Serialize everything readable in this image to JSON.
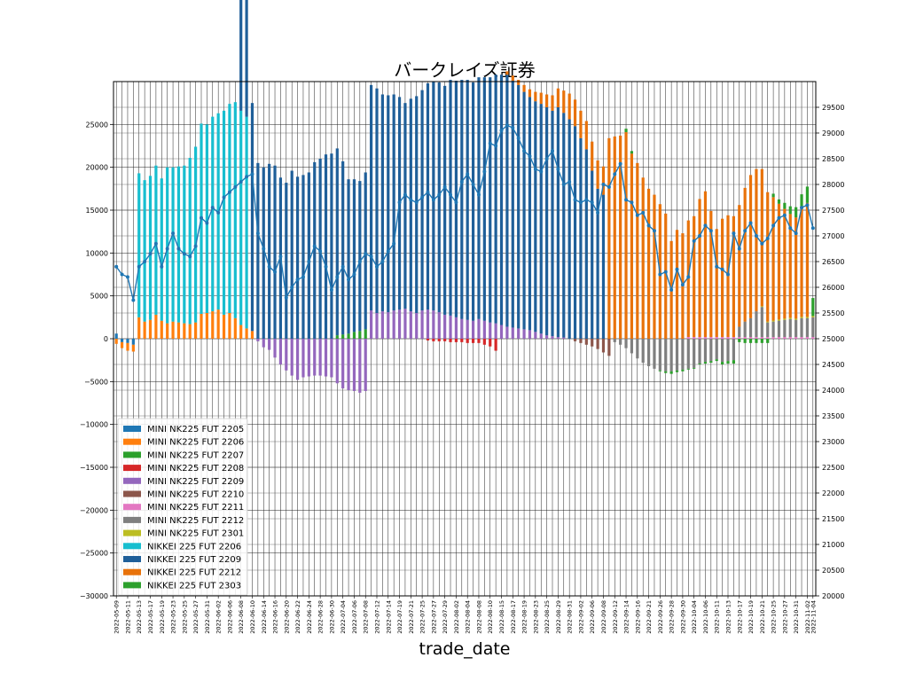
{
  "chart_data": {
    "type": "bar",
    "title": "バークレイズ証券",
    "xlabel": "trade_date",
    "ylabel": "",
    "ylim": [
      -30000,
      30000
    ],
    "y2lim": [
      20000,
      30000
    ],
    "grid": true,
    "legend_position": "bottom-left",
    "y_ticks": [
      -30000,
      -25000,
      -20000,
      -15000,
      -10000,
      -5000,
      0,
      5000,
      10000,
      15000,
      20000,
      25000
    ],
    "y2_ticks": [
      20000,
      20500,
      21000,
      21500,
      22000,
      22500,
      23000,
      23500,
      24000,
      24500,
      25000,
      25500,
      26000,
      26500,
      27000,
      27500,
      28000,
      28500,
      29000,
      29500
    ],
    "categories": [
      "2022-05-09",
      "2022-05-10",
      "2022-05-11",
      "2022-05-12",
      "2022-05-13",
      "2022-05-16",
      "2022-05-17",
      "2022-05-18",
      "2022-05-19",
      "2022-05-20",
      "2022-05-23",
      "2022-05-24",
      "2022-05-25",
      "2022-05-26",
      "2022-05-27",
      "2022-05-30",
      "2022-05-31",
      "2022-06-01",
      "2022-06-02",
      "2022-06-03",
      "2022-06-06",
      "2022-06-07",
      "2022-06-08",
      "2022-06-09",
      "2022-06-10",
      "2022-06-13",
      "2022-06-14",
      "2022-06-15",
      "2022-06-16",
      "2022-06-17",
      "2022-06-20",
      "2022-06-21",
      "2022-06-22",
      "2022-06-23",
      "2022-06-24",
      "2022-06-27",
      "2022-06-28",
      "2022-06-29",
      "2022-06-30",
      "2022-07-01",
      "2022-07-04",
      "2022-07-05",
      "2022-07-06",
      "2022-07-07",
      "2022-07-08",
      "2022-07-11",
      "2022-07-12",
      "2022-07-13",
      "2022-07-14",
      "2022-07-15",
      "2022-07-19",
      "2022-07-20",
      "2022-07-21",
      "2022-07-22",
      "2022-07-25",
      "2022-07-26",
      "2022-07-27",
      "2022-07-28",
      "2022-07-29",
      "2022-08-01",
      "2022-08-02",
      "2022-08-03",
      "2022-08-04",
      "2022-08-05",
      "2022-08-08",
      "2022-08-09",
      "2022-08-10",
      "2022-08-12",
      "2022-08-15",
      "2022-08-16",
      "2022-08-17",
      "2022-08-18",
      "2022-08-19",
      "2022-08-22",
      "2022-08-23",
      "2022-08-24",
      "2022-08-25",
      "2022-08-26",
      "2022-08-29",
      "2022-08-30",
      "2022-08-31",
      "2022-09-01",
      "2022-09-02",
      "2022-09-05",
      "2022-09-06",
      "2022-09-07",
      "2022-09-08",
      "2022-09-09",
      "2022-09-12",
      "2022-09-13",
      "2022-09-14",
      "2022-09-15",
      "2022-09-16",
      "2022-09-20",
      "2022-09-21",
      "2022-09-22",
      "2022-09-26",
      "2022-09-27",
      "2022-09-28",
      "2022-09-29",
      "2022-09-30",
      "2022-10-03",
      "2022-10-04",
      "2022-10-05",
      "2022-10-06",
      "2022-10-07",
      "2022-10-11",
      "2022-10-12",
      "2022-10-13",
      "2022-10-14",
      "2022-10-17",
      "2022-10-18",
      "2022-10-19",
      "2022-10-20",
      "2022-10-21",
      "2022-10-24",
      "2022-10-25",
      "2022-10-26",
      "2022-10-27",
      "2022-10-28",
      "2022-10-31",
      "2022-11-01",
      "2022-11-02",
      "2022-11-04"
    ],
    "x_tick_labels": [
      "2022-05-09",
      "2022-05-11",
      "2022-05-13",
      "2022-05-17",
      "2022-05-19",
      "2022-05-23",
      "2022-05-25",
      "2022-05-27",
      "2022-05-31",
      "2022-06-02",
      "2022-06-06",
      "2022-06-08",
      "2022-06-10",
      "2022-06-14",
      "2022-06-16",
      "2022-06-20",
      "2022-06-22",
      "2022-06-24",
      "2022-06-28",
      "2022-06-30",
      "2022-07-04",
      "2022-07-06",
      "2022-07-08",
      "2022-07-12",
      "2022-07-14",
      "2022-07-19",
      "2022-07-21",
      "2022-07-25",
      "2022-07-27",
      "2022-07-29",
      "2022-08-02",
      "2022-08-04",
      "2022-08-08",
      "2022-08-10",
      "2022-08-15",
      "2022-08-17",
      "2022-08-19",
      "2022-08-23",
      "2022-08-25",
      "2022-08-29",
      "2022-08-31",
      "2022-09-02",
      "2022-09-06",
      "2022-09-08",
      "2022-09-12",
      "2022-09-14",
      "2022-09-16",
      "2022-09-21",
      "2022-09-26",
      "2022-09-28",
      "2022-09-30",
      "2022-10-04",
      "2022-10-06",
      "2022-10-11",
      "2022-10-13",
      "2022-10-17",
      "2022-10-19",
      "2022-10-21",
      "2022-10-25",
      "2022-10-27",
      "2022-10-31",
      "2022-11-02",
      "2022-11-04"
    ],
    "series": [
      {
        "name": "MINI NK225 FUT 2205",
        "color": "#1f77b4",
        "segments": [
          {
            "from": "2022-05-09",
            "to": "2022-05-12",
            "values": [
              600,
              -400,
              -500,
              -700
            ]
          }
        ]
      },
      {
        "name": "MINI NK225 FUT 2206",
        "color": "#ff7f0e",
        "segments": [
          {
            "from": "2022-05-09",
            "to": "2022-06-10",
            "values": [
              -600,
              -700,
              -900,
              -800,
              2500,
              2000,
              2200,
              2800,
              2100,
              1800,
              2000,
              1900,
              1800,
              1700,
              1900,
              2900,
              3000,
              3200,
              3400,
              2800,
              3000,
              2400,
              1600,
              1200,
              900
            ]
          }
        ]
      },
      {
        "name": "MINI NK225 FUT 2207",
        "color": "#2ca02c",
        "segments": [
          {
            "from": "2022-07-01",
            "to": "2022-07-08",
            "values": [
              400,
              500,
              600,
              800,
              900,
              1100
            ]
          }
        ]
      },
      {
        "name": "MINI NK225 FUT 2208",
        "color": "#d62728",
        "segments": [
          {
            "from": "2022-07-26",
            "to": "2022-08-12",
            "values": [
              -200,
              -300,
              -300,
              -300,
              -400,
              -400,
              -400,
              -500,
              -500,
              -500,
              -700,
              -900,
              -1400
            ]
          }
        ]
      },
      {
        "name": "MINI NK225 FUT 2209",
        "color": "#9467bd",
        "segments": [
          {
            "from": "2022-06-13",
            "to": "2022-07-08",
            "values": [
              -300,
              -1000,
              -1300,
              -2200,
              -3000,
              -3700,
              -4300,
              -4800,
              -4500,
              -4400,
              -4300,
              -4300,
              -4400,
              -4500,
              -5200,
              -5800,
              -6000,
              -6100,
              -6300,
              -6100
            ]
          },
          {
            "from": "2022-07-11",
            "to": "2022-08-31",
            "values": [
              3300,
              3000,
              3200,
              3100,
              3300,
              3400,
              3500,
              3200,
              3000,
              3300,
              3400,
              3300,
              3100,
              2800,
              2700,
              2500,
              2300,
              2200,
              2100,
              2300,
              2100,
              1900,
              1800,
              1600,
              1400,
              1300,
              1200,
              1100,
              1000,
              800,
              600,
              400,
              300,
              200,
              150
            ]
          }
        ]
      },
      {
        "name": "MINI NK225 FUT 2210",
        "color": "#8c564b",
        "segments": [
          {
            "from": "2022-09-01",
            "to": "2022-09-09",
            "values": [
              -300,
              -500,
              -700,
              -900,
              -1200,
              -1600,
              -2000
            ]
          }
        ]
      },
      {
        "name": "MINI NK225 FUT 2211",
        "color": "#e377c2",
        "segments": [
          {
            "from": "2022-10-03",
            "to": "2022-11-04",
            "values": [
              200,
              200,
              200,
              200,
              200,
              200,
              200,
              200,
              200,
              200,
              200,
              200,
              200,
              200,
              200,
              200,
              200,
              200,
              200,
              200,
              200,
              200,
              200,
              200
            ]
          }
        ]
      },
      {
        "name": "MINI NK225 FUT 2212",
        "color": "#7f7f7f",
        "segments": [
          {
            "from": "2022-09-12",
            "to": "2022-11-04",
            "values": [
              -400,
              -700,
              -1100,
              -1700,
              -2300,
              -2800,
              -3200,
              -3500,
              -3700,
              -3800,
              -3800,
              -3700,
              -3600,
              -3500,
              -3400,
              -2900,
              -2700,
              -2600,
              -2400,
              -2700,
              -2600,
              -2500,
              1200,
              1800,
              2200,
              3000,
              3500,
              1700,
              1800,
              1900,
              2000,
              2100,
              2000,
              2200,
              2200,
              2300,
              2400
            ]
          }
        ]
      },
      {
        "name": "MINI NK225 FUT 2301",
        "color": "#bcbd22",
        "segments": [
          {
            "from": "2022-10-21",
            "to": "2022-11-04",
            "values": [
              100,
              100,
              120,
              150,
              150,
              150,
              150,
              150,
              150,
              150,
              150
            ]
          }
        ]
      },
      {
        "name": "NIKKEI 225 FUT 2206",
        "color": "#17becf",
        "segments": [
          {
            "from": "2022-05-13",
            "to": "2022-06-10",
            "values": [
              16800,
              16500,
              16800,
              17400,
              16600,
              18200,
              18000,
              18200,
              18400,
              19400,
              20500,
              22200,
              22000,
              22700,
              22900,
              23800,
              24400,
              25200,
              25000,
              24700,
              0
            ]
          }
        ]
      },
      {
        "name": "NIKKEI 225 FUT 2209",
        "color": "#1f5f99",
        "segments": [
          {
            "from": "2022-06-08",
            "to": "2022-09-07",
            "values": [
              24200,
              26000,
              26600,
              20500,
              20000,
              20400,
              20200,
              18800,
              18200,
              19600,
              18900,
              19100,
              19400,
              20600,
              21000,
              21500,
              21600,
              21800,
              20200,
              18000,
              17800,
              17500,
              18300,
              26300,
              26200,
              25300,
              25300,
              25200,
              24800,
              24000,
              24800,
              25300,
              25700,
              26400,
              26700,
              26800,
              26700,
              27500,
              27600,
              27900,
              28000,
              27800,
              28200,
              28400,
              28600,
              29000,
              29200,
              29400,
              28800,
              28400,
              27700,
              27200,
              26900,
              26800,
              26600,
              26300,
              26800,
              26200,
              25600,
              24800,
              23400,
              22100,
              19600,
              17500,
              16800
            ]
          }
        ]
      },
      {
        "name": "NIKKEI 225 FUT 2212",
        "color": "#e8720a",
        "segments": [
          {
            "from": "2022-08-16",
            "to": "2022-11-04",
            "values": [
              400,
              600,
              600,
              800,
              900,
              1100,
              1300,
              1500,
              1800,
              2200,
              2600,
              3000,
              3100,
              3200,
              3300,
              3400,
              3300,
              3300,
              23400,
              23600,
              23700,
              24100,
              21600,
              20500,
              18800,
              17500,
              16800,
              15700,
              14600,
              11400,
              12700,
              12300,
              13600,
              14100,
              16100,
              17000,
              14700,
              12600,
              13800,
              14200,
              14100,
              14200,
              15600,
              16700,
              16600,
              16000,
              15100,
              14400,
              13500,
              12800,
              12100,
              11800,
              12600,
              13300
            ]
          }
        ]
      },
      {
        "name": "NIKKEI 225 FUT 2303",
        "color": "#2ca02c",
        "segments": [
          {
            "from": "2022-09-12",
            "to": "2022-11-04",
            "values": [
              0,
              0,
              400,
              300,
              0,
              0,
              0,
              0,
              -100,
              -200,
              -300,
              -200,
              -200,
              -100,
              -100,
              -100,
              -200,
              -200,
              -200,
              -300,
              -300,
              -400,
              -400,
              -500,
              -500,
              -500,
              -500,
              -500,
              400,
              500,
              700,
              900,
              1200,
              1700,
              1900,
              2100,
              1800
            ]
          }
        ]
      }
    ],
    "line_series": {
      "axis": "right",
      "color": "#1f77b4",
      "values": [
        26400,
        26250,
        26200,
        25750,
        26400,
        26500,
        26650,
        26850,
        26400,
        26750,
        27050,
        26750,
        26650,
        26600,
        26800,
        27350,
        27250,
        27550,
        27450,
        27750,
        27850,
        27950,
        28050,
        28150,
        28200,
        27050,
        26750,
        26400,
        26300,
        26600,
        25800,
        26000,
        26150,
        26200,
        26500,
        26800,
        26700,
        26400,
        25950,
        26200,
        26400,
        26150,
        26250,
        26500,
        26650,
        26600,
        26400,
        26500,
        26700,
        26850,
        27650,
        27800,
        27700,
        27650,
        27750,
        27850,
        27700,
        27800,
        27950,
        27800,
        27650,
        28050,
        28200,
        28000,
        27800,
        28250,
        28800,
        28750,
        29050,
        29150,
        29100,
        28900,
        28650,
        28550,
        28300,
        28250,
        28500,
        28650,
        28300,
        28000,
        28050,
        27700,
        27650,
        27700,
        27650,
        27450,
        28000,
        27950,
        28200,
        28400,
        27700,
        27650,
        27400,
        27450,
        27200,
        27100,
        26250,
        26300,
        25950,
        26350,
        26050,
        26200,
        26900,
        27000,
        27200,
        27100,
        26400,
        26350,
        26250,
        27050,
        26750,
        27100,
        27250,
        27000,
        26850,
        26950,
        27200,
        27350,
        27400,
        27150,
        27050,
        27550,
        27600,
        27150
      ]
    }
  }
}
